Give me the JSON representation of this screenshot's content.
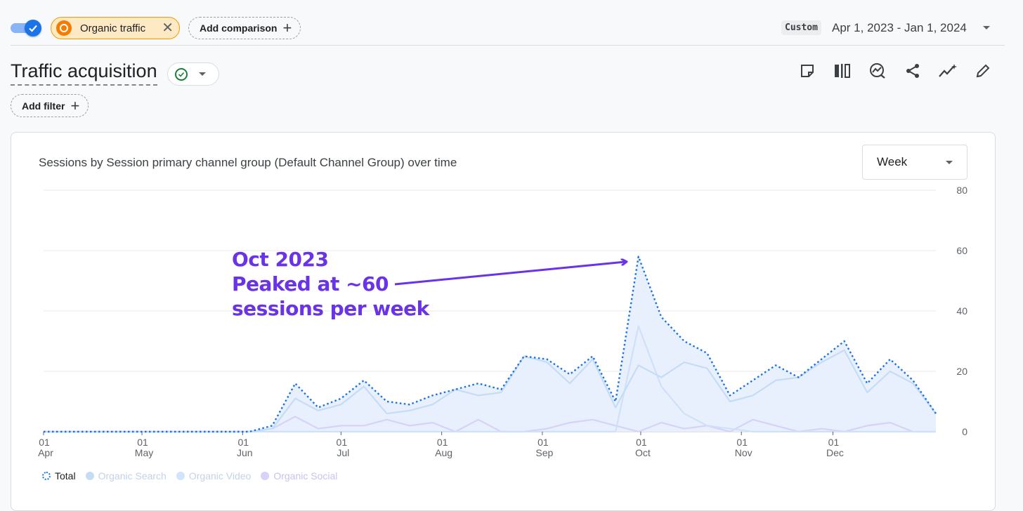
{
  "topbar": {
    "segment_label": "Organic traffic",
    "add_comparison_label": "Add comparison",
    "date_preset": "Custom",
    "date_range": "Apr 1, 2023 - Jan 1, 2024"
  },
  "report": {
    "title": "Traffic acquisition",
    "add_filter_label": "Add filter"
  },
  "card": {
    "title": "Sessions by Session primary channel group (Default Channel Group) over time",
    "granularity": "Week"
  },
  "annotation": {
    "line1": "Oct 2023",
    "line2": "Peaked at ~60",
    "line3": "sessions per week",
    "color": "#6a33e8"
  },
  "legend": [
    {
      "label": "Total",
      "color": "#1a73e8",
      "style": "dotted"
    },
    {
      "label": "Organic Search",
      "color": "#c6dcf5"
    },
    {
      "label": "Organic Video",
      "color": "#d2e3fc"
    },
    {
      "label": "Organic Social",
      "color": "#d7d2f7"
    }
  ],
  "chart_data": {
    "type": "line",
    "title": "Sessions by Session primary channel group (Default Channel Group) over time",
    "x_ticks": [
      {
        "day": "01",
        "month": "Apr",
        "week": 0
      },
      {
        "day": "01",
        "month": "May",
        "week": 4.3
      },
      {
        "day": "01",
        "month": "Jun",
        "week": 8.7
      },
      {
        "day": "01",
        "month": "Jul",
        "week": 13
      },
      {
        "day": "01",
        "month": "Aug",
        "week": 17.4
      },
      {
        "day": "01",
        "month": "Sep",
        "week": 21.8
      },
      {
        "day": "01",
        "month": "Oct",
        "week": 26.1
      },
      {
        "day": "01",
        "month": "Nov",
        "week": 30.5
      },
      {
        "day": "01",
        "month": "Dec",
        "week": 34.5
      }
    ],
    "y_ticks": [
      0,
      20,
      40,
      60,
      80
    ],
    "ylim": [
      0,
      80
    ],
    "grid": true,
    "series": [
      {
        "name": "Total",
        "values": [
          0,
          0,
          0,
          0,
          0,
          0,
          0,
          0,
          0,
          0,
          2,
          16,
          8,
          11,
          17,
          10,
          9,
          12,
          14,
          16,
          14,
          25,
          24,
          19,
          25,
          10,
          58,
          38,
          30,
          26,
          12,
          17,
          22,
          18,
          24,
          30,
          16,
          24,
          17,
          6
        ]
      },
      {
        "name": "Organic Search",
        "values": [
          0,
          0,
          0,
          0,
          0,
          0,
          0,
          0,
          0,
          0,
          1,
          11,
          7,
          9,
          15,
          6,
          7,
          9,
          14,
          12,
          13,
          25,
          23,
          16,
          24,
          8,
          22,
          18,
          23,
          21,
          10,
          12,
          17,
          18,
          23,
          27,
          13,
          20,
          16,
          6
        ]
      },
      {
        "name": "Organic Video",
        "values": [
          0,
          0,
          0,
          0,
          0,
          0,
          0,
          0,
          0,
          0,
          0,
          0,
          0,
          0,
          0,
          0,
          0,
          0,
          0,
          0,
          0,
          0,
          0,
          0,
          0,
          0,
          35,
          15,
          6,
          2,
          1,
          0,
          0,
          0,
          0,
          0,
          0,
          0,
          0,
          0
        ]
      },
      {
        "name": "Organic Social",
        "values": [
          0,
          0,
          0,
          0,
          0,
          0,
          0,
          0,
          0,
          0,
          1,
          5,
          1,
          2,
          2,
          4,
          2,
          3,
          0,
          4,
          0,
          0,
          1,
          3,
          4,
          2,
          0,
          3,
          1,
          2,
          0,
          4,
          2,
          0,
          1,
          0,
          2,
          3,
          0,
          0
        ]
      }
    ]
  }
}
